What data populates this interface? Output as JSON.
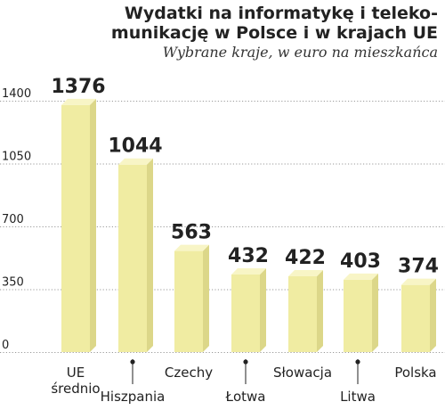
{
  "title_line1": "Wydatki na informatykę i teleko-",
  "title_line2": "munikację w Polsce i w krajach UE",
  "subtitle": "Wybrane kraje, w euro na mieszkańca",
  "colors": {
    "bar_front": "#f0eca2",
    "bar_side": "#dcd789",
    "bar_top": "#f8f5c6",
    "grid": "#9a9a9a"
  },
  "chart_data": {
    "type": "bar",
    "title": "Wydatki na informatykę i telekomunikację w Polsce i w krajach UE",
    "subtitle": "Wybrane kraje, w euro na mieszkańca",
    "categories": [
      "UE średnio",
      "Hiszpania",
      "Czechy",
      "Łotwa",
      "Słowacja",
      "Litwa",
      "Polska"
    ],
    "values": [
      1376,
      1044,
      563,
      432,
      422,
      403,
      374
    ],
    "value_labels": [
      "1376",
      "1044",
      "563",
      "432",
      "422",
      "403",
      "374"
    ],
    "yticks": [
      0,
      350,
      700,
      1050,
      1400
    ],
    "ytick_labels": [
      "0",
      "350",
      "700",
      "1050",
      "1400"
    ],
    "ylim": [
      0,
      1400
    ],
    "grid": true,
    "xlabel": "",
    "ylabel": ""
  }
}
